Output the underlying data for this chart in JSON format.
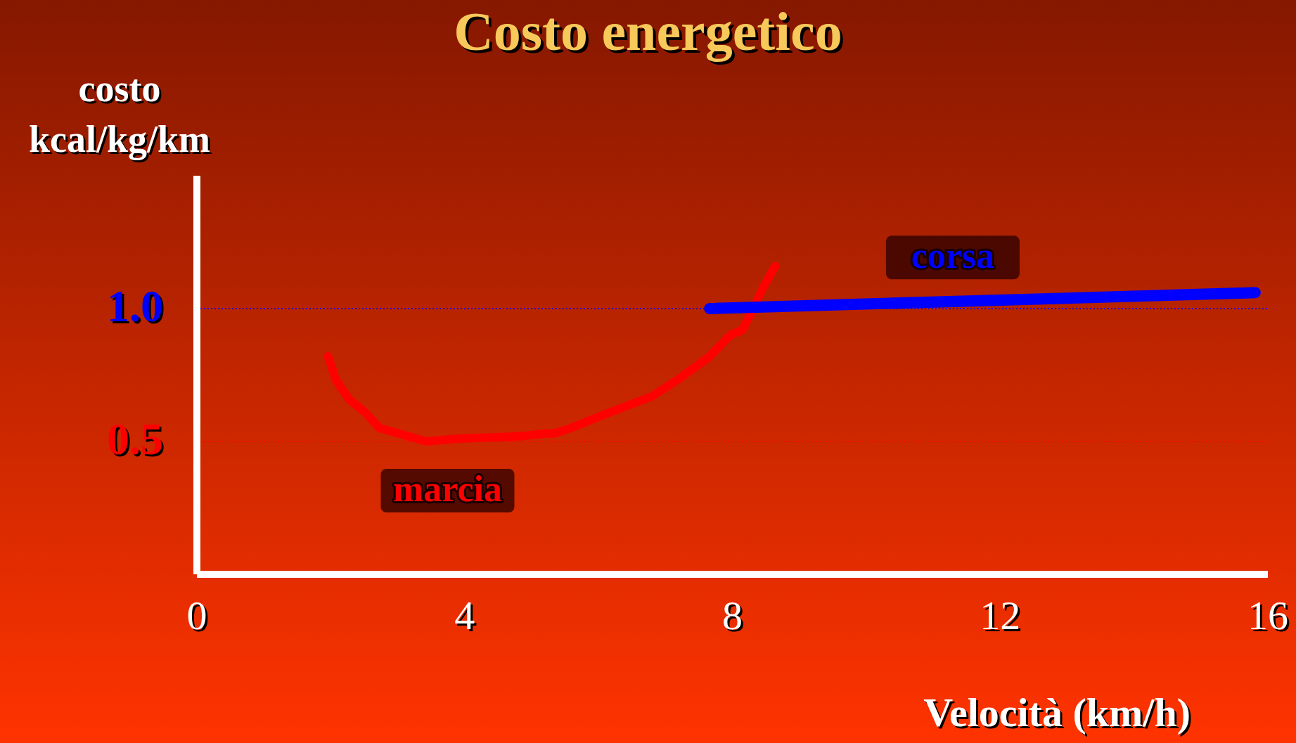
{
  "chart_data": {
    "type": "line",
    "title": "Costo energetico",
    "ylabel": "costo\nkcal/kg/km",
    "xlabel": "Velocità (km/h)",
    "xlim": [
      0,
      16
    ],
    "xticks": [
      0,
      4,
      8,
      12,
      16
    ],
    "ylim": [
      0,
      1.5
    ],
    "yticks": [
      0.5,
      {
        "value": 1.0,
        "label": "1.0"
      }
    ],
    "series": [
      {
        "name": "marcia",
        "color": "#ff0000",
        "x": [
          1.96,
          2.08,
          2.27,
          2.51,
          2.73,
          3.43,
          3.86,
          4.84,
          5.21,
          5.33,
          5.58,
          6.07,
          6.8,
          7.17,
          7.66,
          7.97,
          8.15,
          8.33,
          8.46,
          8.64
        ],
        "values": [
          0.82,
          0.73,
          0.66,
          0.61,
          0.55,
          0.5,
          0.51,
          0.52,
          0.53,
          0.53,
          0.55,
          0.6,
          0.67,
          0.73,
          0.82,
          0.9,
          0.92,
          1.01,
          1.08,
          1.16
        ]
      },
      {
        "name": "corsa",
        "color": "#0000ff",
        "x": [
          7.66,
          15.81
        ],
        "values": [
          1.0,
          1.06
        ]
      }
    ],
    "ref_lines": [
      {
        "axis": "y",
        "value": 1.0,
        "color": "#0000ff",
        "line_style": "dotted"
      },
      {
        "axis": "y",
        "value": 0.5,
        "color": "#ff0000",
        "line_style": "dotted"
      }
    ],
    "marker": "none",
    "line_style": "solid"
  }
}
